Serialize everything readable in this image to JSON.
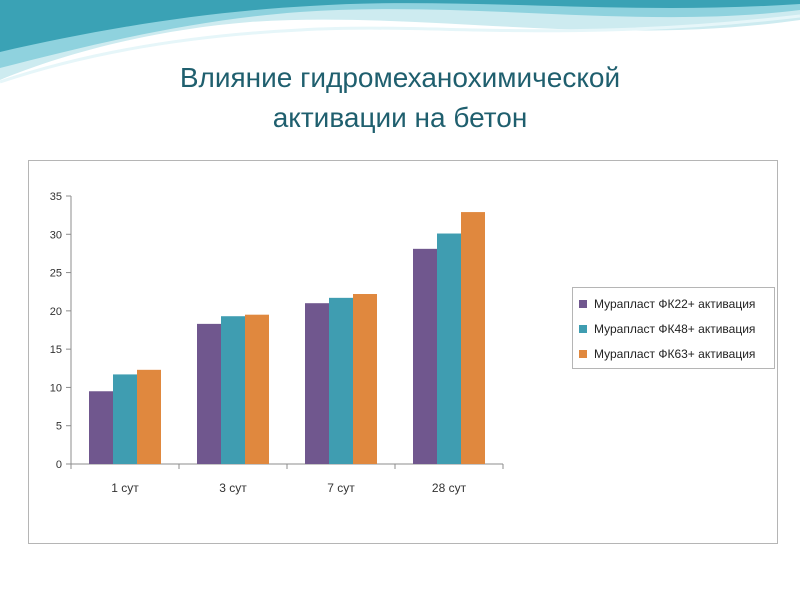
{
  "title_lines": [
    "Влияние гидромеханохимической",
    "активации на бетон"
  ],
  "colors": {
    "title": "#1f5f6e",
    "series": [
      "#70578e",
      "#3f9db1",
      "#e0883e"
    ],
    "axis": "#8c8c8c",
    "decor_teal": "#3aa2b5",
    "decor_light": "#cdebf0"
  },
  "chart_data": {
    "type": "bar",
    "categories": [
      "1 сут",
      "3 сут",
      "7 сут",
      "28 сут"
    ],
    "series": [
      {
        "name": "Мурапласт ФК22+ активация",
        "values": [
          9.5,
          18.3,
          21.0,
          28.1
        ]
      },
      {
        "name": "Мурапласт ФК48+ активация",
        "values": [
          11.7,
          19.3,
          21.7,
          30.1
        ]
      },
      {
        "name": "Мурапласт ФК63+ активация",
        "values": [
          12.3,
          19.5,
          22.2,
          32.9
        ]
      }
    ],
    "ylim": [
      0,
      35
    ],
    "yticks": [
      "0",
      "5",
      "10",
      "15",
      "20",
      "25",
      "30",
      "35"
    ],
    "grid": false,
    "legend": "right",
    "title": "",
    "xlabel": "",
    "ylabel": ""
  }
}
